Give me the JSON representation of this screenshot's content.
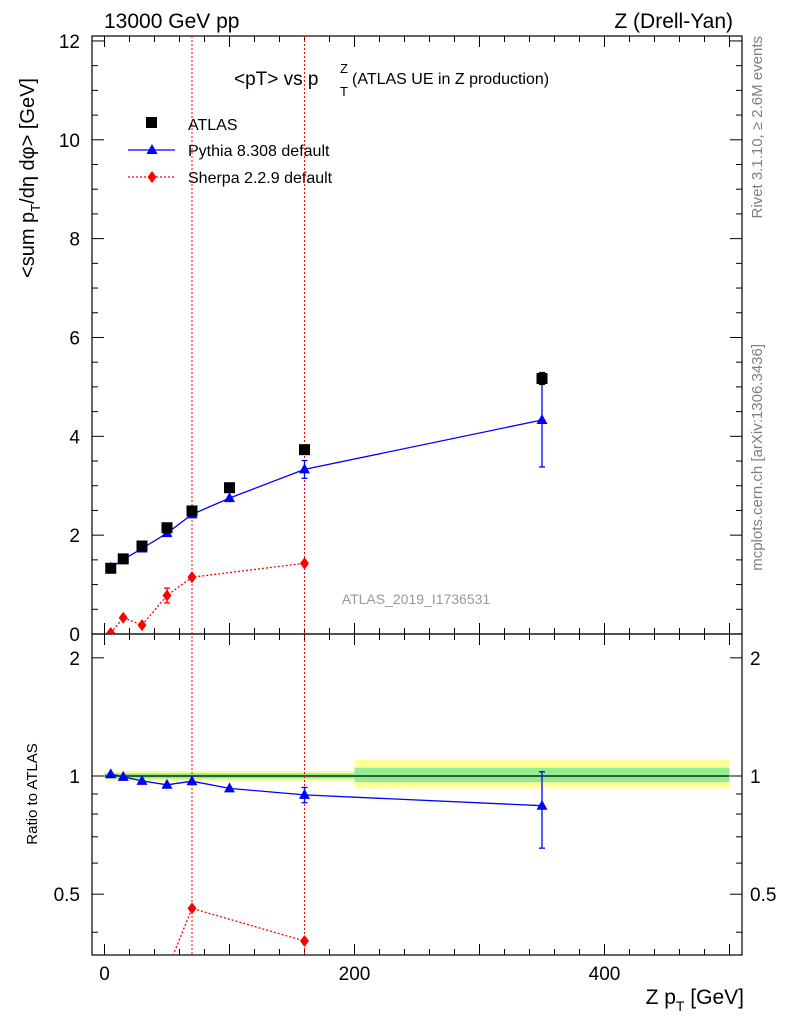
{
  "header": {
    "left": "13000 GeV pp",
    "right": "Z (Drell-Yan)"
  },
  "side_labels": {
    "rivet": "Rivet 3.1.10, ≥ 2.6M events",
    "mcplots": "mcplots.cern.ch [arXiv:1306.3436]"
  },
  "chart_data": {
    "type": "scatter",
    "title_main": "<pT> vs p",
    "title_sup": "Z",
    "title_sub": "T",
    "title_rest": " (ATLAS UE in Z production)",
    "analysis_tag": "ATLAS_2019_I1736531",
    "xlabel": {
      "main": "Z p",
      "sub": "T",
      "rest": " [GeV]"
    },
    "ylabel": {
      "a": "<sum p",
      "a_sub": "T",
      "b": "/dη dφ> [GeV]"
    },
    "ratio_ylabel": "Ratio to ATLAS",
    "xlim": [
      -10,
      510
    ],
    "ylim": [
      0,
      12.1
    ],
    "ratio_ylim": [
      0.35,
      2.3
    ],
    "ratio_log": true,
    "x_ticks": [
      "0",
      "200",
      "400"
    ],
    "y_ticks": [
      "0",
      "2",
      "4",
      "6",
      "8",
      "10",
      "12"
    ],
    "ratio_ticks": [
      "0.5",
      "1",
      "2"
    ],
    "vertical_lines": [
      70,
      160
    ],
    "series": [
      {
        "name": "ATLAS",
        "color": "#000000",
        "marker": "square",
        "line": "none",
        "points": [
          {
            "x": 5,
            "y": 1.33
          },
          {
            "x": 15,
            "y": 1.52
          },
          {
            "x": 30,
            "y": 1.78
          },
          {
            "x": 50,
            "y": 2.15
          },
          {
            "x": 70,
            "y": 2.49
          },
          {
            "x": 100,
            "y": 2.96
          },
          {
            "x": 160,
            "y": 3.73
          },
          {
            "x": 350,
            "y": 5.17,
            "err": 0.12
          }
        ]
      },
      {
        "name": "Pythia 8.308 default",
        "color": "#0000ff",
        "marker": "triangle",
        "line": "solid",
        "points": [
          {
            "x": 5,
            "y": 1.34
          },
          {
            "x": 15,
            "y": 1.51
          },
          {
            "x": 30,
            "y": 1.73
          },
          {
            "x": 50,
            "y": 2.04
          },
          {
            "x": 70,
            "y": 2.42
          },
          {
            "x": 100,
            "y": 2.75
          },
          {
            "x": 160,
            "y": 3.33,
            "err": 0.18
          },
          {
            "x": 350,
            "y": 4.33,
            "err": 0.95
          }
        ]
      },
      {
        "name": "Sherpa 2.2.9 default",
        "color": "#ff0000",
        "marker": "diamond",
        "line": "dotted",
        "points": [
          {
            "x": 5,
            "y": 0.02
          },
          {
            "x": 15,
            "y": 0.33
          },
          {
            "x": 30,
            "y": 0.18
          },
          {
            "x": 50,
            "y": 0.78,
            "err": 0.15
          },
          {
            "x": 70,
            "y": 1.15
          },
          {
            "x": 160,
            "y": 1.43
          }
        ]
      }
    ],
    "ratio": {
      "bands": [
        {
          "x0": 0,
          "x1": 200,
          "yellow": [
            0.972,
            1.03
          ],
          "green": [
            0.985,
            1.017
          ]
        },
        {
          "x0": 200,
          "x1": 500,
          "yellow": [
            0.93,
            1.1
          ],
          "green": [
            0.965,
            1.05
          ]
        }
      ],
      "series": [
        {
          "name": "Pythia 8.308 default",
          "color": "#0000ff",
          "marker": "triangle",
          "line": "solid",
          "points": [
            {
              "x": 5,
              "y": 1.01
            },
            {
              "x": 15,
              "y": 0.995
            },
            {
              "x": 30,
              "y": 0.972
            },
            {
              "x": 50,
              "y": 0.95
            },
            {
              "x": 70,
              "y": 0.97
            },
            {
              "x": 100,
              "y": 0.93
            },
            {
              "x": 160,
              "y": 0.895,
              "err": 0.04
            },
            {
              "x": 350,
              "y": 0.84,
              "err": 0.185
            }
          ]
        },
        {
          "name": "Sherpa 2.2.9 default",
          "color": "#ff0000",
          "marker": "diamond",
          "line": "dotted",
          "points": [
            {
              "x": 50,
              "y": 0.32
            },
            {
              "x": 70,
              "y": 0.46
            },
            {
              "x": 160,
              "y": 0.38
            }
          ]
        }
      ]
    }
  }
}
